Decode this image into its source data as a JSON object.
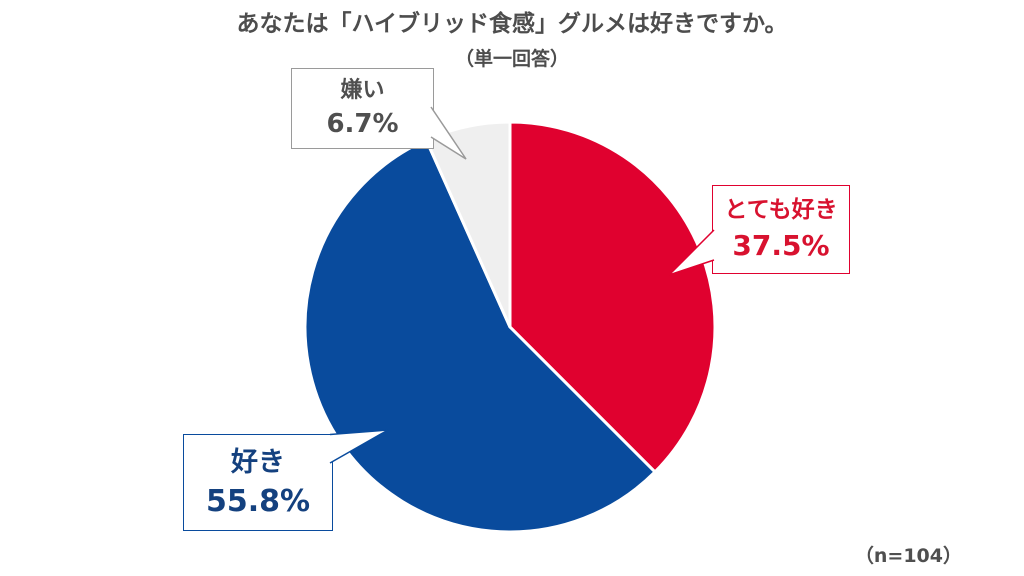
{
  "title": "あなたは「ハイブリッド食感」グルメは好きですか。",
  "subtitle": "（単一回答）",
  "sample_note": "（n=104）",
  "text_colors": {
    "title": "#4D4D4D",
    "note": "#4F4F4F"
  },
  "chart_data": {
    "type": "pie",
    "title": "あなたは「ハイブリッド食感」グルメは好きですか。",
    "subtitle": "（単一回答）",
    "sample_size": 104,
    "start_angle": 0,
    "direction": "clockwise",
    "legend_position": "callout-labels",
    "slices": [
      {
        "label": "とても好き",
        "value": 37.5,
        "display": "37.5%",
        "color": "#E0012F",
        "text_color": "#D8122F"
      },
      {
        "label": "好き",
        "value": 55.8,
        "display": "55.8%",
        "color": "#094B9D",
        "text_color": "#14417F"
      },
      {
        "label": "嫌い",
        "value": 6.7,
        "display": "6.7%",
        "color": "#EFEFEF",
        "text_color": "#4F4F4F",
        "callout_border": "#9A9A9A"
      }
    ]
  }
}
